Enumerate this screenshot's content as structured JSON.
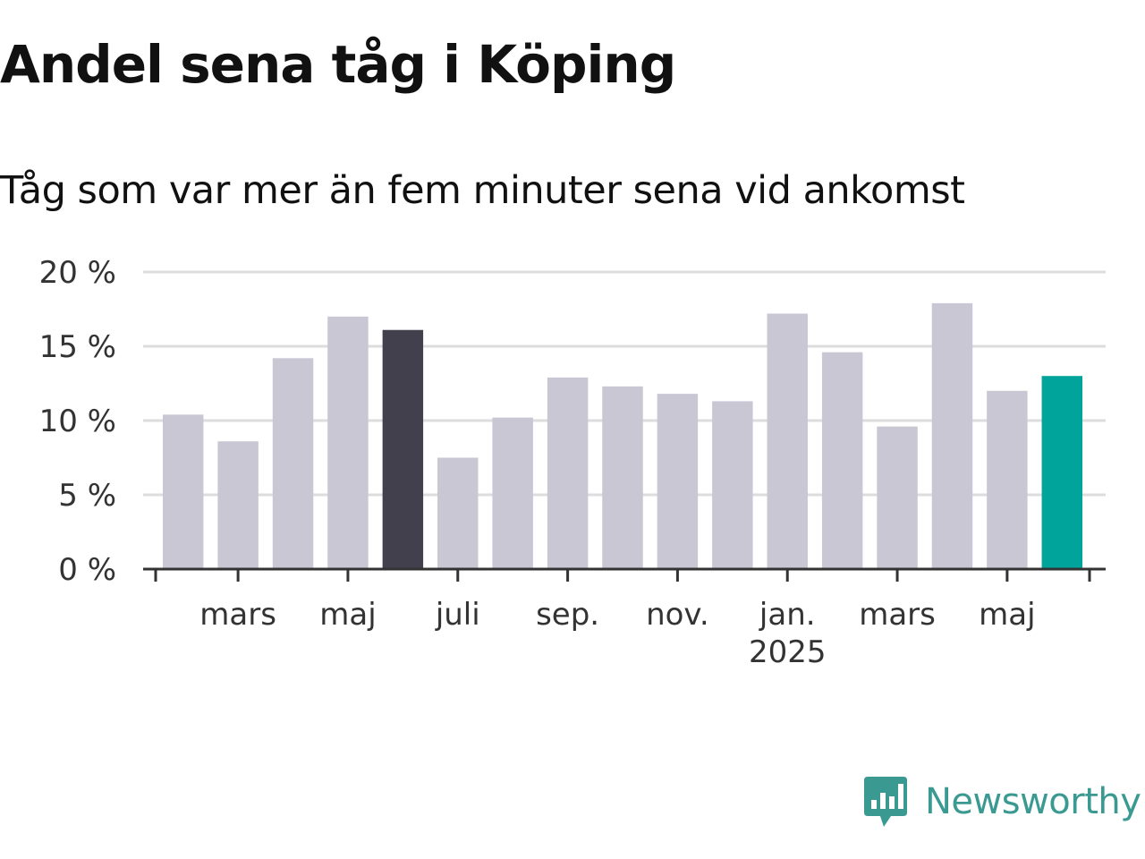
{
  "title": "Andel sena tåg i Köping",
  "subtitle": "Tåg som var mer än fem minuter sena vid ankomst",
  "logo": {
    "text": "Newsworthy",
    "icon": "newsworthy-logo-icon"
  },
  "colors": {
    "default_bar": "#c8c7d3",
    "highlight_bar": "#42404d",
    "current_bar": "#00a49b",
    "grid": "#dddddd",
    "axis": "#333333",
    "logo": "#3a9a92"
  },
  "chart_data": {
    "type": "bar",
    "title": "Andel sena tåg i Köping",
    "subtitle": "Tåg som var mer än fem minuter sena vid ankomst",
    "categories": [
      "2024-02",
      "2024-03",
      "2024-04",
      "2024-05",
      "2024-06",
      "2024-07",
      "2024-08",
      "2024-09",
      "2024-10",
      "2024-11",
      "2024-12",
      "2025-01",
      "2025-02",
      "2025-03",
      "2025-04",
      "2025-05",
      "2025-06"
    ],
    "values": [
      10.4,
      8.6,
      14.2,
      17.0,
      16.1,
      7.5,
      10.2,
      12.9,
      12.3,
      11.8,
      11.3,
      17.2,
      14.6,
      9.6,
      17.9,
      12.0,
      13.0
    ],
    "bar_colors": [
      "default",
      "default",
      "default",
      "default",
      "highlight",
      "default",
      "default",
      "default",
      "default",
      "default",
      "default",
      "default",
      "default",
      "default",
      "default",
      "default",
      "current"
    ],
    "ylim": [
      0,
      20
    ],
    "yticks": [
      {
        "value": 0,
        "label": "0 %"
      },
      {
        "value": 5,
        "label": "5 %"
      },
      {
        "value": 10,
        "label": "10 %"
      },
      {
        "value": 15,
        "label": "15 %"
      },
      {
        "value": 20,
        "label": "20 %"
      }
    ],
    "xticks": [
      {
        "category": "2024-03",
        "label": "mars"
      },
      {
        "category": "2024-05",
        "label": "maj"
      },
      {
        "category": "2024-07",
        "label": "juli"
      },
      {
        "category": "2024-09",
        "label": "sep."
      },
      {
        "category": "2024-11",
        "label": "nov."
      },
      {
        "category": "2025-01",
        "label": "jan.",
        "sublabel": "2025"
      },
      {
        "category": "2025-03",
        "label": "mars"
      },
      {
        "category": "2025-05",
        "label": "maj"
      }
    ],
    "xlabel": "",
    "ylabel": "",
    "grid": true,
    "legend": "none"
  }
}
